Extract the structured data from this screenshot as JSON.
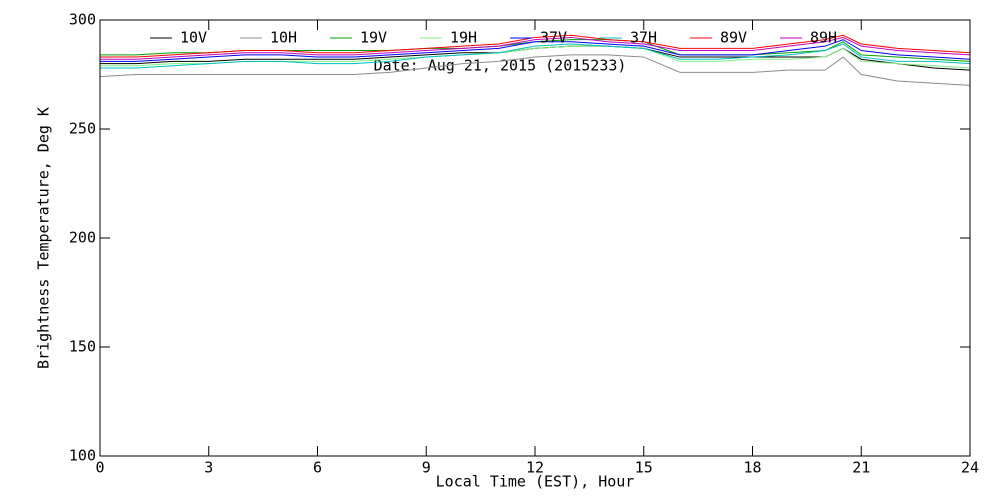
{
  "chart_data": {
    "type": "line",
    "annotation": "Date: Aug 21, 2015 (2015233)",
    "xlabel": "Local Time (EST), Hour",
    "ylabel": "Brightness Temperature, Deg K",
    "x": [
      0,
      1,
      2,
      3,
      4,
      5,
      6,
      7,
      8,
      9,
      10,
      11,
      12,
      13,
      14,
      15,
      16,
      17,
      18,
      19,
      20,
      20.5,
      21,
      22,
      23,
      24
    ],
    "xlim": [
      0,
      24
    ],
    "xticks": [
      0,
      3,
      6,
      9,
      12,
      15,
      18,
      21,
      24
    ],
    "ylim": [
      100,
      300
    ],
    "yticks": [
      100,
      150,
      200,
      250,
      300
    ],
    "series": [
      {
        "name": "10V",
        "color": "#000000",
        "values": [
          280,
          280,
          281,
          281,
          282,
          282,
          282,
          282,
          283,
          284,
          285,
          285,
          287,
          288,
          288,
          287,
          283,
          283,
          283,
          283,
          283,
          287,
          282,
          280,
          278,
          277
        ]
      },
      {
        "name": "10H",
        "color": "#8c8c8c",
        "values": [
          274,
          275,
          275,
          275,
          275,
          275,
          275,
          275,
          276,
          278,
          280,
          281,
          283,
          284,
          284,
          283,
          276,
          276,
          276,
          277,
          277,
          283,
          275,
          272,
          271,
          270
        ]
      },
      {
        "name": "19V",
        "color": "#00a000",
        "values": [
          284,
          284,
          285,
          285,
          286,
          286,
          286,
          286,
          286,
          287,
          287,
          288,
          290,
          291,
          291,
          290,
          284,
          284,
          284,
          285,
          286,
          290,
          284,
          283,
          282,
          281
        ]
      },
      {
        "name": "19H",
        "color": "#80f080",
        "values": [
          279,
          279,
          280,
          280,
          281,
          281,
          281,
          281,
          282,
          283,
          284,
          285,
          287,
          288,
          288,
          287,
          281,
          281,
          282,
          282,
          283,
          287,
          281,
          280,
          279,
          278
        ]
      },
      {
        "name": "37V",
        "color": "#0000ff",
        "values": [
          281,
          281,
          282,
          283,
          284,
          284,
          283,
          283,
          284,
          285,
          286,
          287,
          290,
          290,
          289,
          288,
          284,
          284,
          284,
          286,
          288,
          291,
          286,
          284,
          283,
          282
        ]
      },
      {
        "name": "37H",
        "color": "#00c0c0",
        "values": [
          278,
          278,
          279,
          280,
          281,
          281,
          280,
          280,
          281,
          283,
          284,
          285,
          288,
          289,
          288,
          287,
          282,
          282,
          283,
          284,
          286,
          289,
          283,
          281,
          281,
          280
        ]
      },
      {
        "name": "89V",
        "color": "#ff0000",
        "values": [
          283,
          283,
          284,
          285,
          286,
          286,
          285,
          285,
          286,
          287,
          288,
          289,
          292,
          293,
          291,
          290,
          287,
          287,
          287,
          289,
          291,
          293,
          289,
          287,
          286,
          285
        ]
      },
      {
        "name": "89H",
        "color": "#c000c0",
        "values": [
          282,
          282,
          283,
          284,
          285,
          285,
          284,
          284,
          285,
          286,
          287,
          288,
          291,
          292,
          290,
          289,
          286,
          286,
          286,
          288,
          290,
          292,
          288,
          286,
          285,
          284
        ]
      }
    ]
  }
}
